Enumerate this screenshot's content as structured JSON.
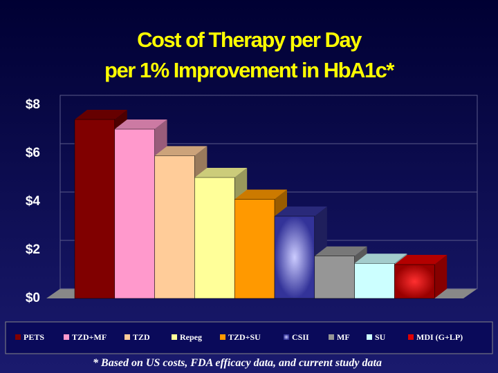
{
  "chart_data": {
    "type": "bar3d",
    "title": [
      "Cost of Therapy per Day",
      "per 1% Improvement in HbA1c*"
    ],
    "categories": [
      "PETS",
      "TZD+MF",
      "TZD",
      "Repeg",
      "TZD+SU",
      "CSII",
      "MF",
      "SU",
      "MDI (G+LP)"
    ],
    "values": [
      7.4,
      7.0,
      5.9,
      5.0,
      4.1,
      3.4,
      1.75,
      1.45,
      1.4
    ],
    "colors": [
      "#800000",
      "#ff99cc",
      "#ffcc99",
      "#ffff99",
      "#ff9900",
      "#333399",
      "#969696",
      "#ccffff",
      "#e00000"
    ],
    "ylim": [
      0,
      8
    ],
    "yticks": [
      {
        "value": 0,
        "label": "$0"
      },
      {
        "value": 2,
        "label": "$2"
      },
      {
        "value": 4,
        "label": "$4"
      },
      {
        "value": 6,
        "label": "$6"
      },
      {
        "value": 8,
        "label": "$8"
      }
    ],
    "grid": true,
    "legend": "bottom",
    "footnote": "* Based on US costs, FDA efficacy data, and current study data"
  }
}
